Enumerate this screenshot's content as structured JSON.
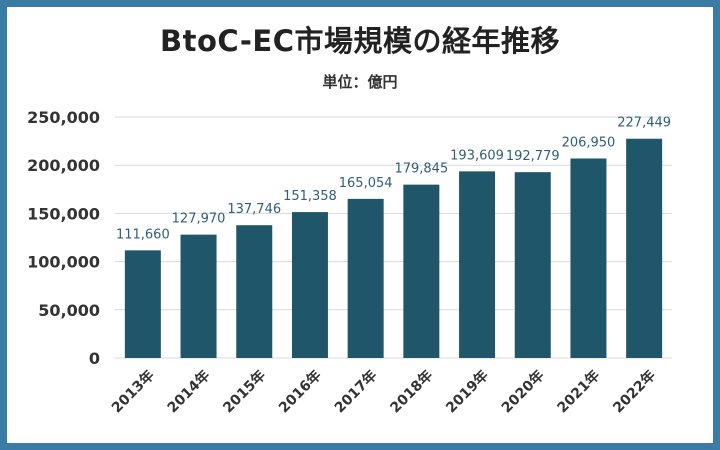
{
  "chart_data": {
    "type": "bar",
    "title": "BtoC-EC市場規模の経年推移",
    "subtitle": "単位：億円",
    "categories": [
      "2013年",
      "2014年",
      "2015年",
      "2016年",
      "2017年",
      "2018年",
      "2019年",
      "2020年",
      "2021年",
      "2022年"
    ],
    "values": [
      111660,
      127970,
      137746,
      151358,
      165054,
      179845,
      193609,
      192779,
      206950,
      227449
    ],
    "value_labels": [
      "111,660",
      "127,970",
      "137,746",
      "151,358",
      "165,054",
      "179,845",
      "193,609",
      "192,779",
      "206,950",
      "227,449"
    ],
    "yticks": [
      0,
      50000,
      100000,
      150000,
      200000,
      250000
    ],
    "ytick_labels": [
      "0",
      "50,000",
      "100,000",
      "150,000",
      "200,000",
      "250,000"
    ],
    "ylim": [
      0,
      250000
    ],
    "grid": true,
    "colors": {
      "bar": "#1f566a",
      "value_label": "#2f5f78",
      "border": "#3a7ca5",
      "grid": "#d9d9d9"
    }
  }
}
